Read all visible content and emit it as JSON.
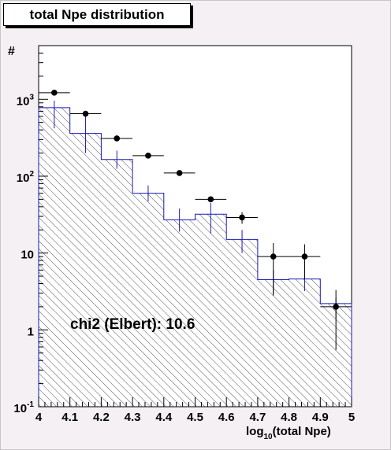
{
  "chart_data": {
    "type": "histogram",
    "title": "total Npe distribution",
    "ylabel": "#",
    "xlabel_base": "log",
    "xlabel_sub": "10",
    "xlabel_rest": "(total Npe)",
    "annotation": "chi2 (Elbert): 10.6",
    "xlim": [
      4.0,
      5.0
    ],
    "ylim": [
      0.1,
      5000
    ],
    "log_y": true,
    "x_ticks": [
      "4",
      "4.1",
      "4.2",
      "4.3",
      "4.4",
      "4.5",
      "4.6",
      "4.7",
      "4.8",
      "4.9",
      "5"
    ],
    "y_ticks": [
      {
        "value": 0.1,
        "base": "10",
        "exp": "-1"
      },
      {
        "value": 1,
        "base": "1",
        "exp": ""
      },
      {
        "value": 10,
        "base": "10",
        "exp": ""
      },
      {
        "value": 100,
        "base": "10",
        "exp": "2"
      },
      {
        "value": 1000,
        "base": "10",
        "exp": "3"
      }
    ],
    "bin_edges": [
      4.0,
      4.1,
      4.2,
      4.3,
      4.4,
      4.5,
      4.6,
      4.7,
      4.8,
      4.9,
      5.0
    ],
    "simulation": {
      "values": [
        780,
        360,
        165,
        60,
        27,
        32,
        15,
        4.5,
        4.6,
        2.2
      ],
      "err_low": [
        420,
        200,
        125,
        47,
        19,
        18,
        10,
        2.9,
        3.2,
        1.4
      ],
      "err_high": [
        960,
        610,
        215,
        76,
        38,
        45,
        20,
        6.0,
        7.8,
        2.6
      ],
      "color": "#1a1ab8"
    },
    "data": {
      "values": [
        1220,
        650,
        310,
        185,
        110,
        50,
        29,
        9,
        9,
        2
      ],
      "err_low": [
        1220,
        650,
        310,
        185,
        110,
        50,
        24,
        2.8,
        4.6,
        0.55
      ],
      "err_high": [
        1220,
        650,
        310,
        185,
        110,
        50,
        34,
        13.5,
        13,
        3.3
      ],
      "color": "#000000"
    }
  }
}
